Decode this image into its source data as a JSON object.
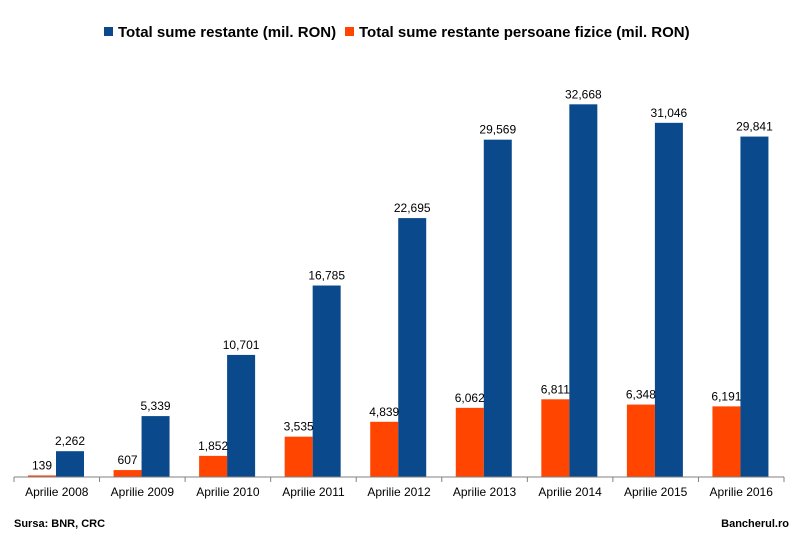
{
  "chart_data": {
    "type": "bar",
    "categories": [
      "Aprilie 2008",
      "Aprilie 2009",
      "Aprilie 2010",
      "Aprilie 2011",
      "Aprilie 2012",
      "Aprilie 2013",
      "Aprilie 2014",
      "Aprilie 2015",
      "Aprilie 2016"
    ],
    "series": [
      {
        "name": "Total sume restante persoane fizice (mil. RON)",
        "color": "#ff4500",
        "values": [
          139,
          607,
          1852,
          3535,
          4839,
          6062,
          6811,
          6348,
          6191
        ],
        "labels": [
          "139",
          "607",
          "1,852",
          "3,535",
          "4,839",
          "6,062",
          "6,811",
          "6,348",
          "6,191"
        ]
      },
      {
        "name": "Total sume restante (mil. RON)",
        "color": "#0a4a8c",
        "values": [
          2262,
          5339,
          10701,
          16785,
          22695,
          29569,
          32668,
          31046,
          29841
        ],
        "labels": [
          "2,262",
          "5,339",
          "10,701",
          "16,785",
          "22,695",
          "29,569",
          "32,668",
          "31,046",
          "29,841"
        ]
      }
    ],
    "legend_order": [
      1,
      0
    ],
    "legend_position": "top",
    "ylim": [
      0,
      34800
    ],
    "grid": false,
    "title": "",
    "xlabel": "",
    "ylabel": ""
  },
  "footer": {
    "source": "Sursa: BNR, CRC",
    "brand": "Bancherul.ro"
  }
}
